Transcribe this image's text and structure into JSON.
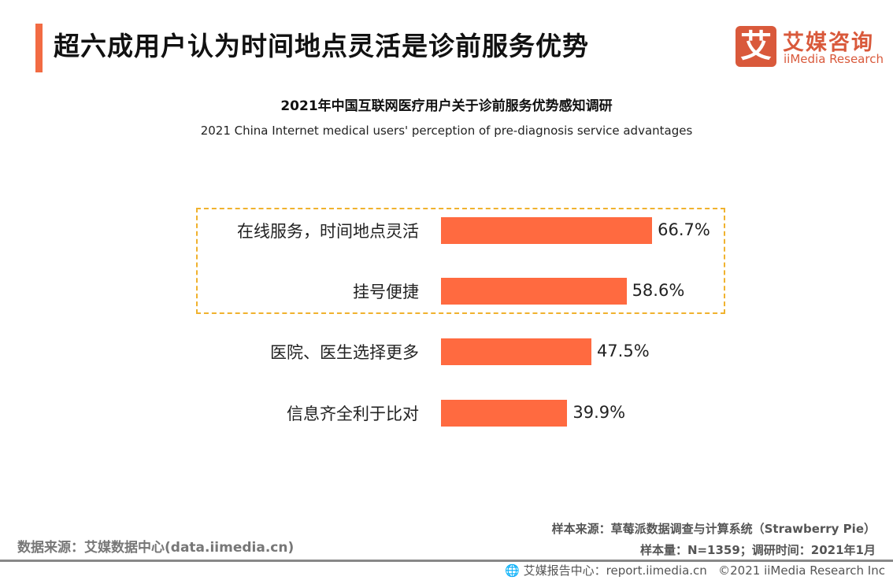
{
  "header": {
    "title": "超六成用户认为时间地点灵活是诊前服务优势",
    "accent_color": "#f26b43"
  },
  "logo": {
    "mark": "艾",
    "name_cn": "艾媒咨询",
    "name_en": "iiMedia Research",
    "color": "#d9593b"
  },
  "chart_data": {
    "type": "bar",
    "orientation": "horizontal",
    "title": "2021年中国互联网医疗用户关于诊前服务优势感知调研",
    "subtitle": "2021 China Internet medical users' perception of pre-diagnosis service advantages",
    "categories": [
      "在线服务，时间地点灵活",
      "挂号便捷",
      "医院、医生选择更多",
      "信息齐全利于比对"
    ],
    "values": [
      66.7,
      58.6,
      47.5,
      39.9
    ],
    "labels": [
      "66.7%",
      "58.6%",
      "47.5%",
      "39.9%"
    ],
    "unit": "%",
    "bar_color": "#ff6a40",
    "highlighted_categories": [
      "在线服务，时间地点灵活",
      "挂号便捷"
    ],
    "highlight_color": "#f0b22e",
    "grid": false
  },
  "footer": {
    "data_source": "数据来源：艾媒数据中心(data.iimedia.cn)",
    "sample_source": "样本来源：草莓派数据调查与计算系统（Strawberry Pie）",
    "sample_size": "样本量：N=1359；调研时间：2021年1月",
    "report_center": "艾媒报告中心：report.iimedia.cn",
    "copyright": "©2021  iiMedia Research  Inc"
  }
}
